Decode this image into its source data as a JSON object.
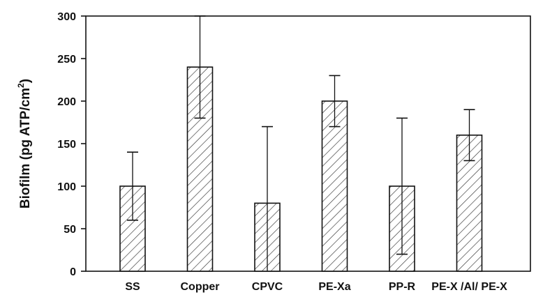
{
  "chart_data": {
    "type": "bar",
    "title": "",
    "xlabel": "",
    "ylabel": "Biofilm (pg ATP/cm",
    "ylabel_superscript": "2",
    "ylabel_suffix": ")",
    "categories": [
      "SS",
      "Copper",
      "CPVC",
      "PE-Xa",
      "PP-R",
      "PE-X /Al/ PE-X"
    ],
    "values": [
      100,
      240,
      80,
      200,
      100,
      160
    ],
    "error_low": [
      60,
      180,
      0,
      170,
      20,
      130
    ],
    "error_high": [
      140,
      300,
      170,
      230,
      180,
      190
    ],
    "ylim": [
      0,
      300
    ],
    "yticks": [
      0,
      50,
      100,
      150,
      200,
      250,
      300
    ],
    "grid": false,
    "legend": "none",
    "bar_fill": "hatched",
    "colors": {
      "bar_edge": "#111111",
      "hatch": "#333333",
      "axis": "#111111"
    }
  }
}
